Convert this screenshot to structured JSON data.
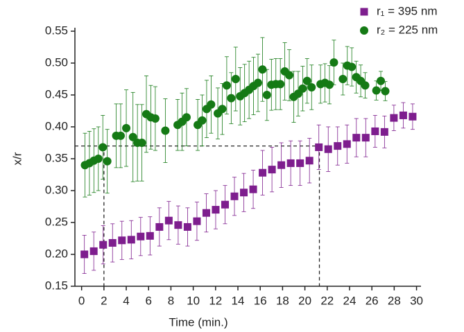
{
  "chart_data": {
    "type": "scatter",
    "xlabel": "Time (min.)",
    "ylabel": "x/r",
    "xlim": [
      -0.6,
      30.4
    ],
    "ylim": [
      0.15,
      0.55
    ],
    "xticks": [
      0,
      2,
      4,
      6,
      8,
      10,
      12,
      14,
      16,
      18,
      20,
      22,
      24,
      26,
      28,
      30
    ],
    "yticks": [
      0.15,
      {
        "value": 0.2,
        "label": "0.20"
      },
      0.25,
      {
        "value": 0.3,
        "label": "0.30"
      },
      0.35,
      {
        "value": 0.4,
        "label": "0.40"
      },
      0.45,
      {
        "value": 0.5,
        "label": "0.50"
      },
      0.55
    ],
    "legend": "top-right",
    "reference_lines": {
      "y": 0.37,
      "x": [
        2,
        21.3
      ]
    },
    "series": [
      {
        "name": "r₁ = 395 nm",
        "color": "#7e1e8e",
        "marker": "square",
        "x": [
          0.25,
          1.09,
          1.93,
          2.77,
          3.61,
          4.45,
          5.29,
          6.13,
          6.97,
          7.81,
          8.65,
          9.49,
          10.33,
          11.17,
          12.01,
          12.85,
          13.69,
          14.53,
          15.37,
          16.21,
          17.05,
          17.89,
          18.73,
          19.57,
          20.41,
          21.25,
          22.09,
          22.93,
          23.77,
          24.61,
          25.45,
          26.29,
          27.13,
          27.97,
          28.81,
          29.65
        ],
        "values": [
          0.2,
          0.205,
          0.215,
          0.218,
          0.222,
          0.223,
          0.228,
          0.229,
          0.243,
          0.253,
          0.246,
          0.243,
          0.252,
          0.265,
          0.27,
          0.278,
          0.291,
          0.297,
          0.302,
          0.328,
          0.333,
          0.34,
          0.343,
          0.343,
          0.347,
          0.368,
          0.365,
          0.37,
          0.373,
          0.383,
          0.383,
          0.393,
          0.392,
          0.414,
          0.418,
          0.416
        ],
        "errors": [
          0.03,
          0.03,
          0.03,
          0.03,
          0.03,
          0.03,
          0.03,
          0.03,
          0.03,
          0.03,
          0.03,
          0.03,
          0.03,
          0.03,
          0.03,
          0.03,
          0.03,
          0.03,
          0.03,
          0.035,
          0.035,
          0.035,
          0.035,
          0.035,
          0.035,
          0.035,
          0.035,
          0.03,
          0.03,
          0.03,
          0.03,
          0.025,
          0.025,
          0.02,
          0.02,
          0.02
        ]
      },
      {
        "name": "r₂ = 225 nm",
        "color": "#157a15",
        "marker": "circle",
        "x": [
          0.3,
          0.7,
          1.1,
          1.5,
          1.9,
          2.3,
          3.1,
          3.5,
          4.0,
          4.6,
          5.0,
          5.4,
          5.8,
          6.2,
          6.6,
          7.5,
          8.6,
          9.0,
          9.4,
          10.4,
          10.8,
          11.2,
          11.6,
          12.2,
          12.6,
          13.0,
          13.4,
          13.8,
          14.2,
          14.6,
          15.0,
          15.4,
          15.8,
          16.2,
          16.6,
          17.0,
          17.4,
          17.8,
          18.2,
          18.6,
          19.0,
          19.4,
          19.8,
          20.2,
          20.6,
          21.4,
          21.8,
          22.2,
          22.6,
          23.4,
          23.8,
          24.2,
          24.6,
          25.0,
          25.4,
          26.4,
          26.8,
          27.2
        ],
        "values": [
          0.34,
          0.343,
          0.347,
          0.35,
          0.368,
          0.346,
          0.386,
          0.386,
          0.398,
          0.384,
          0.375,
          0.375,
          0.42,
          0.415,
          0.413,
          0.394,
          0.403,
          0.408,
          0.415,
          0.403,
          0.41,
          0.428,
          0.435,
          0.421,
          0.428,
          0.465,
          0.445,
          0.475,
          0.448,
          0.453,
          0.458,
          0.464,
          0.469,
          0.49,
          0.45,
          0.466,
          0.467,
          0.467,
          0.487,
          0.481,
          0.447,
          0.452,
          0.46,
          0.472,
          0.462,
          0.467,
          0.469,
          0.466,
          0.501,
          0.475,
          0.496,
          0.494,
          0.478,
          0.472,
          0.465,
          0.457,
          0.472,
          0.456
        ],
        "errors": [
          0.05,
          0.05,
          0.05,
          0.05,
          0.05,
          0.05,
          0.05,
          0.05,
          0.06,
          0.07,
          0.06,
          0.06,
          0.06,
          0.05,
          0.05,
          0.05,
          0.04,
          0.045,
          0.045,
          0.04,
          0.04,
          0.045,
          0.045,
          0.04,
          0.04,
          0.045,
          0.04,
          0.05,
          0.045,
          0.045,
          0.045,
          0.045,
          0.045,
          0.05,
          0.04,
          0.04,
          0.04,
          0.04,
          0.045,
          0.04,
          0.04,
          0.035,
          0.035,
          0.035,
          0.035,
          0.03,
          0.03,
          0.03,
          0.035,
          0.025,
          0.03,
          0.03,
          0.025,
          0.025,
          0.02,
          0.015,
          0.015,
          0.015
        ]
      }
    ]
  }
}
